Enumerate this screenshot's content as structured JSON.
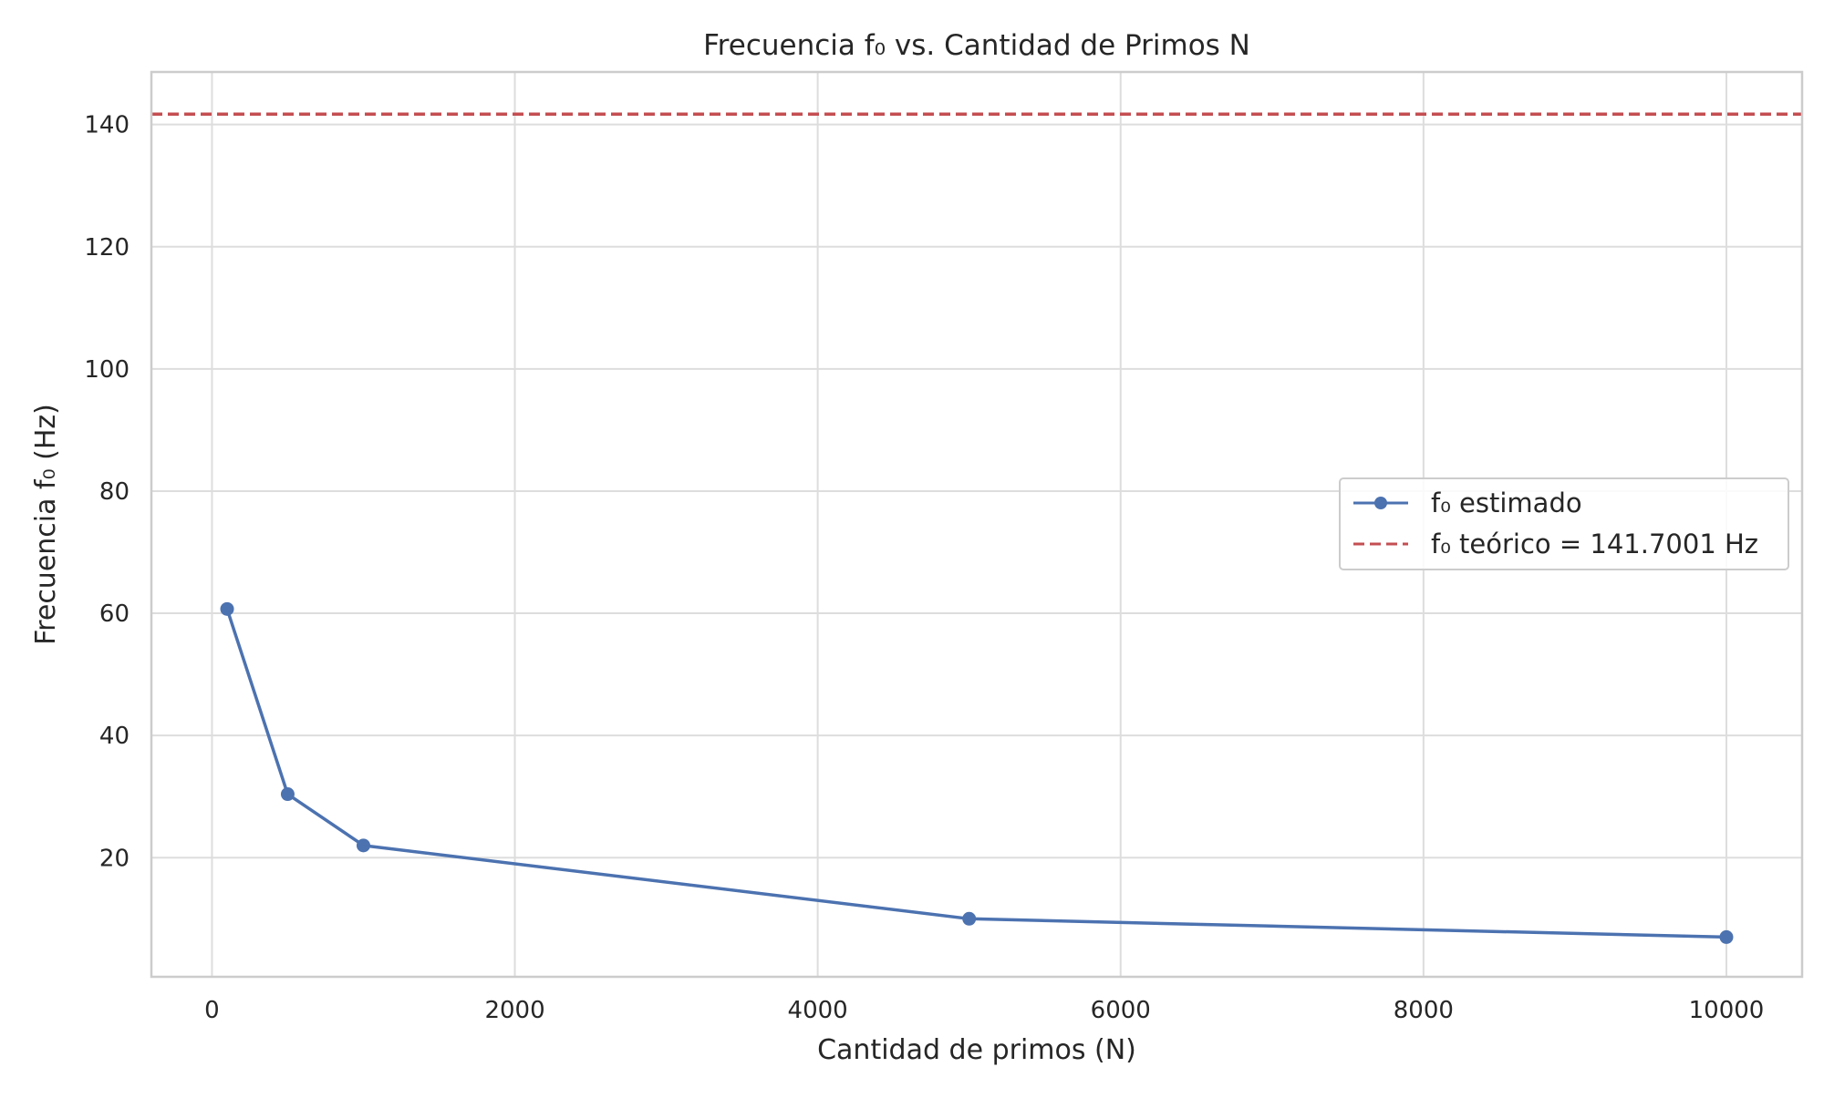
{
  "chart_data": {
    "type": "line",
    "title": "Frecuencia f₀ vs. Cantidad de Primos N",
    "xlabel": "Cantidad de primos (N)",
    "ylabel": "Frecuencia f₀ (Hz)",
    "xlim": [
      -400,
      10500
    ],
    "ylim": [
      0.5,
      148.6
    ],
    "x_ticks": [
      0,
      2000,
      4000,
      6000,
      8000,
      10000
    ],
    "y_ticks": [
      20,
      40,
      60,
      80,
      100,
      120,
      140
    ],
    "grid": true,
    "legend_position": "center-right",
    "series": [
      {
        "name": "f₀ estimado",
        "style": "line-marker",
        "color": "#4c72b0",
        "x": [
          100,
          500,
          1000,
          5000,
          10000
        ],
        "y": [
          60.7,
          30.4,
          22.0,
          10.0,
          7.0
        ]
      },
      {
        "name": "f₀ teórico = 141.7001 Hz",
        "style": "dashed-hline",
        "color": "#c44e52",
        "y": 141.7001
      }
    ]
  }
}
